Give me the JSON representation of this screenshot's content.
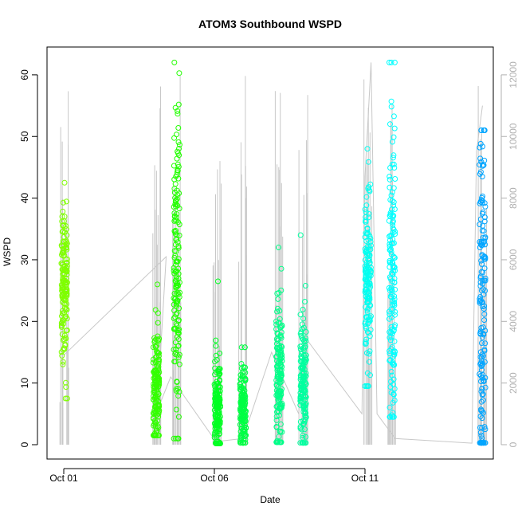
{
  "chart_data": {
    "type": "scatter",
    "title": "ATOM3 Southbound WSPD",
    "xlabel": "Date",
    "ylabel": "WSPD",
    "x_ticks": [
      "Oct 01",
      "Oct 06",
      "Oct 11"
    ],
    "x_tick_days": [
      1,
      6,
      11
    ],
    "xlim_days": [
      0.95,
      15.95
    ],
    "ylim": [
      0,
      64.5
    ],
    "y_ticks": [
      0,
      10,
      20,
      30,
      40,
      50,
      60
    ],
    "y2_ticks": [
      0,
      2000,
      4000,
      6000,
      8000,
      10000,
      12000
    ],
    "y2lim": [
      0,
      12900
    ],
    "grid": false,
    "series": [
      {
        "color": "#7FFF00",
        "day": 1.02,
        "ymin": 7.5,
        "ymax": 42.5,
        "center": 26,
        "spread": 6
      },
      {
        "color": "#33FF00",
        "day": 4.07,
        "ymin": 1.5,
        "ymax": 26,
        "center": 9,
        "spread": 5
      },
      {
        "color": "#22FF00",
        "day": 4.75,
        "ymin": 1,
        "ymax": 62,
        "center": 27,
        "spread": 12
      },
      {
        "color": "#00FF22",
        "day": 6.1,
        "ymin": 0.2,
        "ymax": 26.5,
        "center": 6,
        "spread": 4
      },
      {
        "color": "#00FF44",
        "day": 6.95,
        "ymin": 0.3,
        "ymax": 15.8,
        "center": 6,
        "spread": 3.5
      },
      {
        "color": "#00FF88",
        "day": 8.15,
        "ymin": 0.4,
        "ymax": 32,
        "center": 10,
        "spread": 6
      },
      {
        "color": "#00FF9F",
        "day": 8.95,
        "ymin": 0.3,
        "ymax": 34,
        "center": 10,
        "spread": 6
      },
      {
        "color": "#00FFF0",
        "day": 11.1,
        "ymin": 9.5,
        "ymax": 48,
        "center": 28,
        "spread": 7
      },
      {
        "color": "#00FFFF",
        "day": 11.9,
        "ymin": 4.5,
        "ymax": 62,
        "center": 27,
        "spread": 12
      },
      {
        "color": "#00A5FF",
        "day": 14.9,
        "ymin": 0.3,
        "ymax": 51,
        "center": 25,
        "spread": 15
      }
    ],
    "index_line": [
      [
        1.0,
        2900
      ],
      [
        4.4,
        6100
      ],
      [
        4.1,
        1100
      ],
      [
        4.55,
        2200
      ],
      [
        6.05,
        100
      ],
      [
        6.95,
        200
      ],
      [
        7.9,
        3000
      ],
      [
        8.8,
        1000
      ],
      [
        9.0,
        3500
      ],
      [
        10.9,
        1000
      ],
      [
        11.0,
        8700
      ],
      [
        11.2,
        12400
      ],
      [
        11.4,
        1000
      ],
      [
        12.0,
        200
      ],
      [
        14.55,
        50
      ],
      [
        14.7,
        9500
      ],
      [
        14.9,
        11000
      ]
    ]
  }
}
